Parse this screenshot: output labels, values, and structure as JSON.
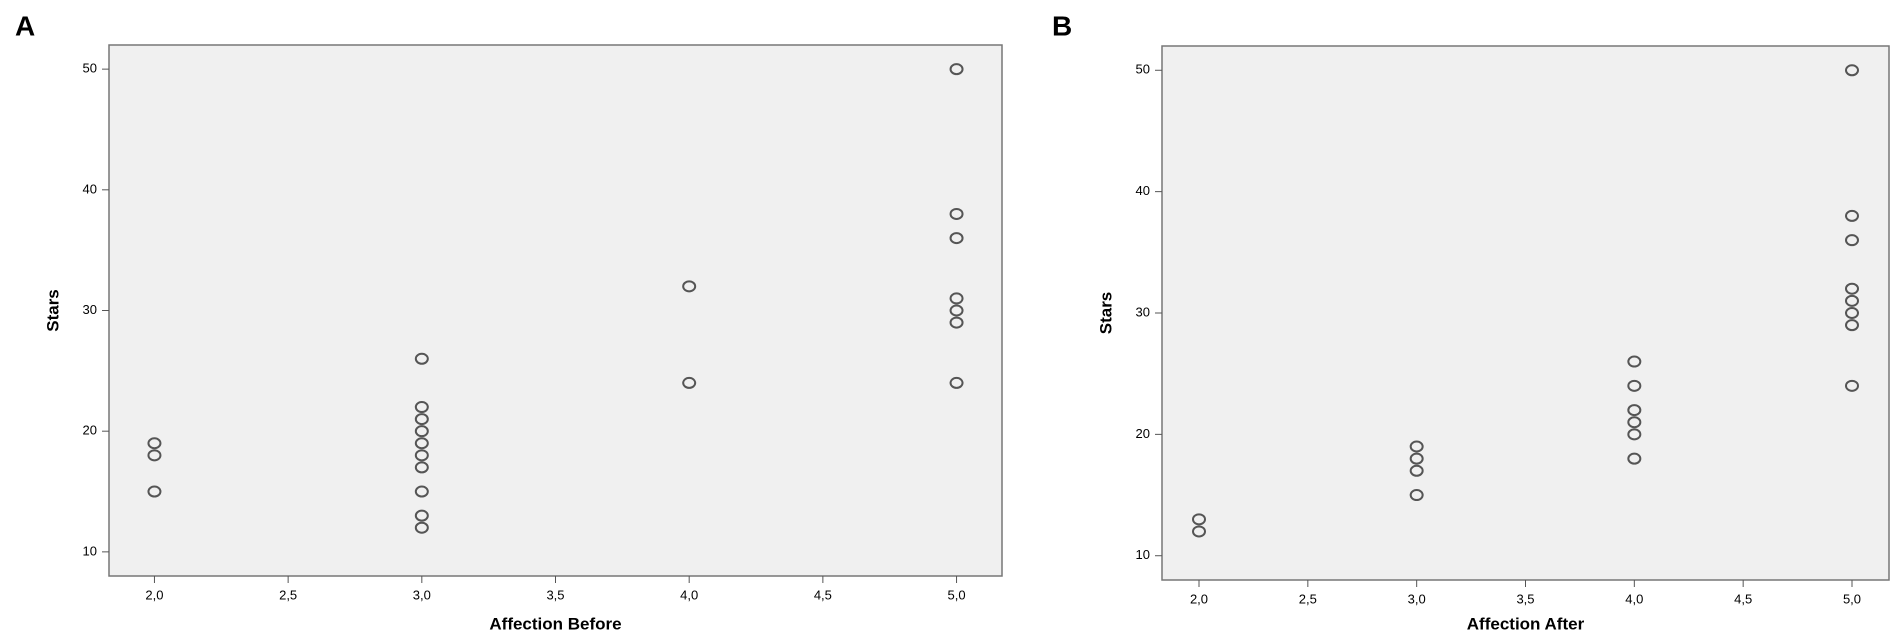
{
  "chart_data": [
    {
      "type": "scatter",
      "panel_label": "A",
      "x_label": "Affection Before",
      "y_label": "Stars",
      "x": [
        2,
        2,
        2,
        3,
        3,
        3,
        3,
        3,
        3,
        3,
        3,
        3,
        3,
        4,
        4,
        5,
        5,
        5,
        5,
        5,
        5,
        5
      ],
      "y": [
        19,
        18,
        15,
        26,
        22,
        21,
        20,
        19,
        18,
        17,
        15,
        13,
        12,
        32,
        24,
        50,
        38,
        36,
        31,
        30,
        29,
        24
      ],
      "color": "#555555",
      "xlim": [
        1.83,
        5.17
      ],
      "ylim": [
        8,
        52
      ],
      "xticks": [
        {
          "value": 2,
          "label": "2,0"
        },
        {
          "value": 2.5,
          "label": "2,5"
        },
        {
          "value": 3,
          "label": "3,0"
        },
        {
          "value": 3.5,
          "label": "3,5"
        },
        {
          "value": 4,
          "label": "4,0"
        },
        {
          "value": 4.5,
          "label": "4,5"
        },
        {
          "value": 5,
          "label": "5,0"
        }
      ],
      "yticks": [
        10,
        20,
        30,
        40,
        50
      ]
    },
    {
      "type": "scatter",
      "panel_label": "B",
      "x_label": "Affection After",
      "y_label": "Stars",
      "x": [
        2,
        2,
        3,
        3,
        3,
        3,
        4,
        4,
        4,
        4,
        4,
        4,
        5,
        5,
        5,
        5,
        5,
        5,
        5,
        5
      ],
      "y": [
        13,
        12,
        19,
        18,
        17,
        15,
        26,
        24,
        22,
        21,
        20,
        18,
        50,
        38,
        36,
        32,
        31,
        30,
        29,
        24
      ],
      "color": "#555555",
      "xlim": [
        1.83,
        5.17
      ],
      "ylim": [
        8,
        52
      ],
      "xticks": [
        {
          "value": 2,
          "label": "2,0"
        },
        {
          "value": 2.5,
          "label": "2,5"
        },
        {
          "value": 3,
          "label": "3,0"
        },
        {
          "value": 3.5,
          "label": "3,5"
        },
        {
          "value": 4,
          "label": "4,0"
        },
        {
          "value": 4.5,
          "label": "4,5"
        },
        {
          "value": 5,
          "label": "5,0"
        }
      ],
      "yticks": [
        10,
        20,
        30,
        40,
        50
      ]
    }
  ]
}
